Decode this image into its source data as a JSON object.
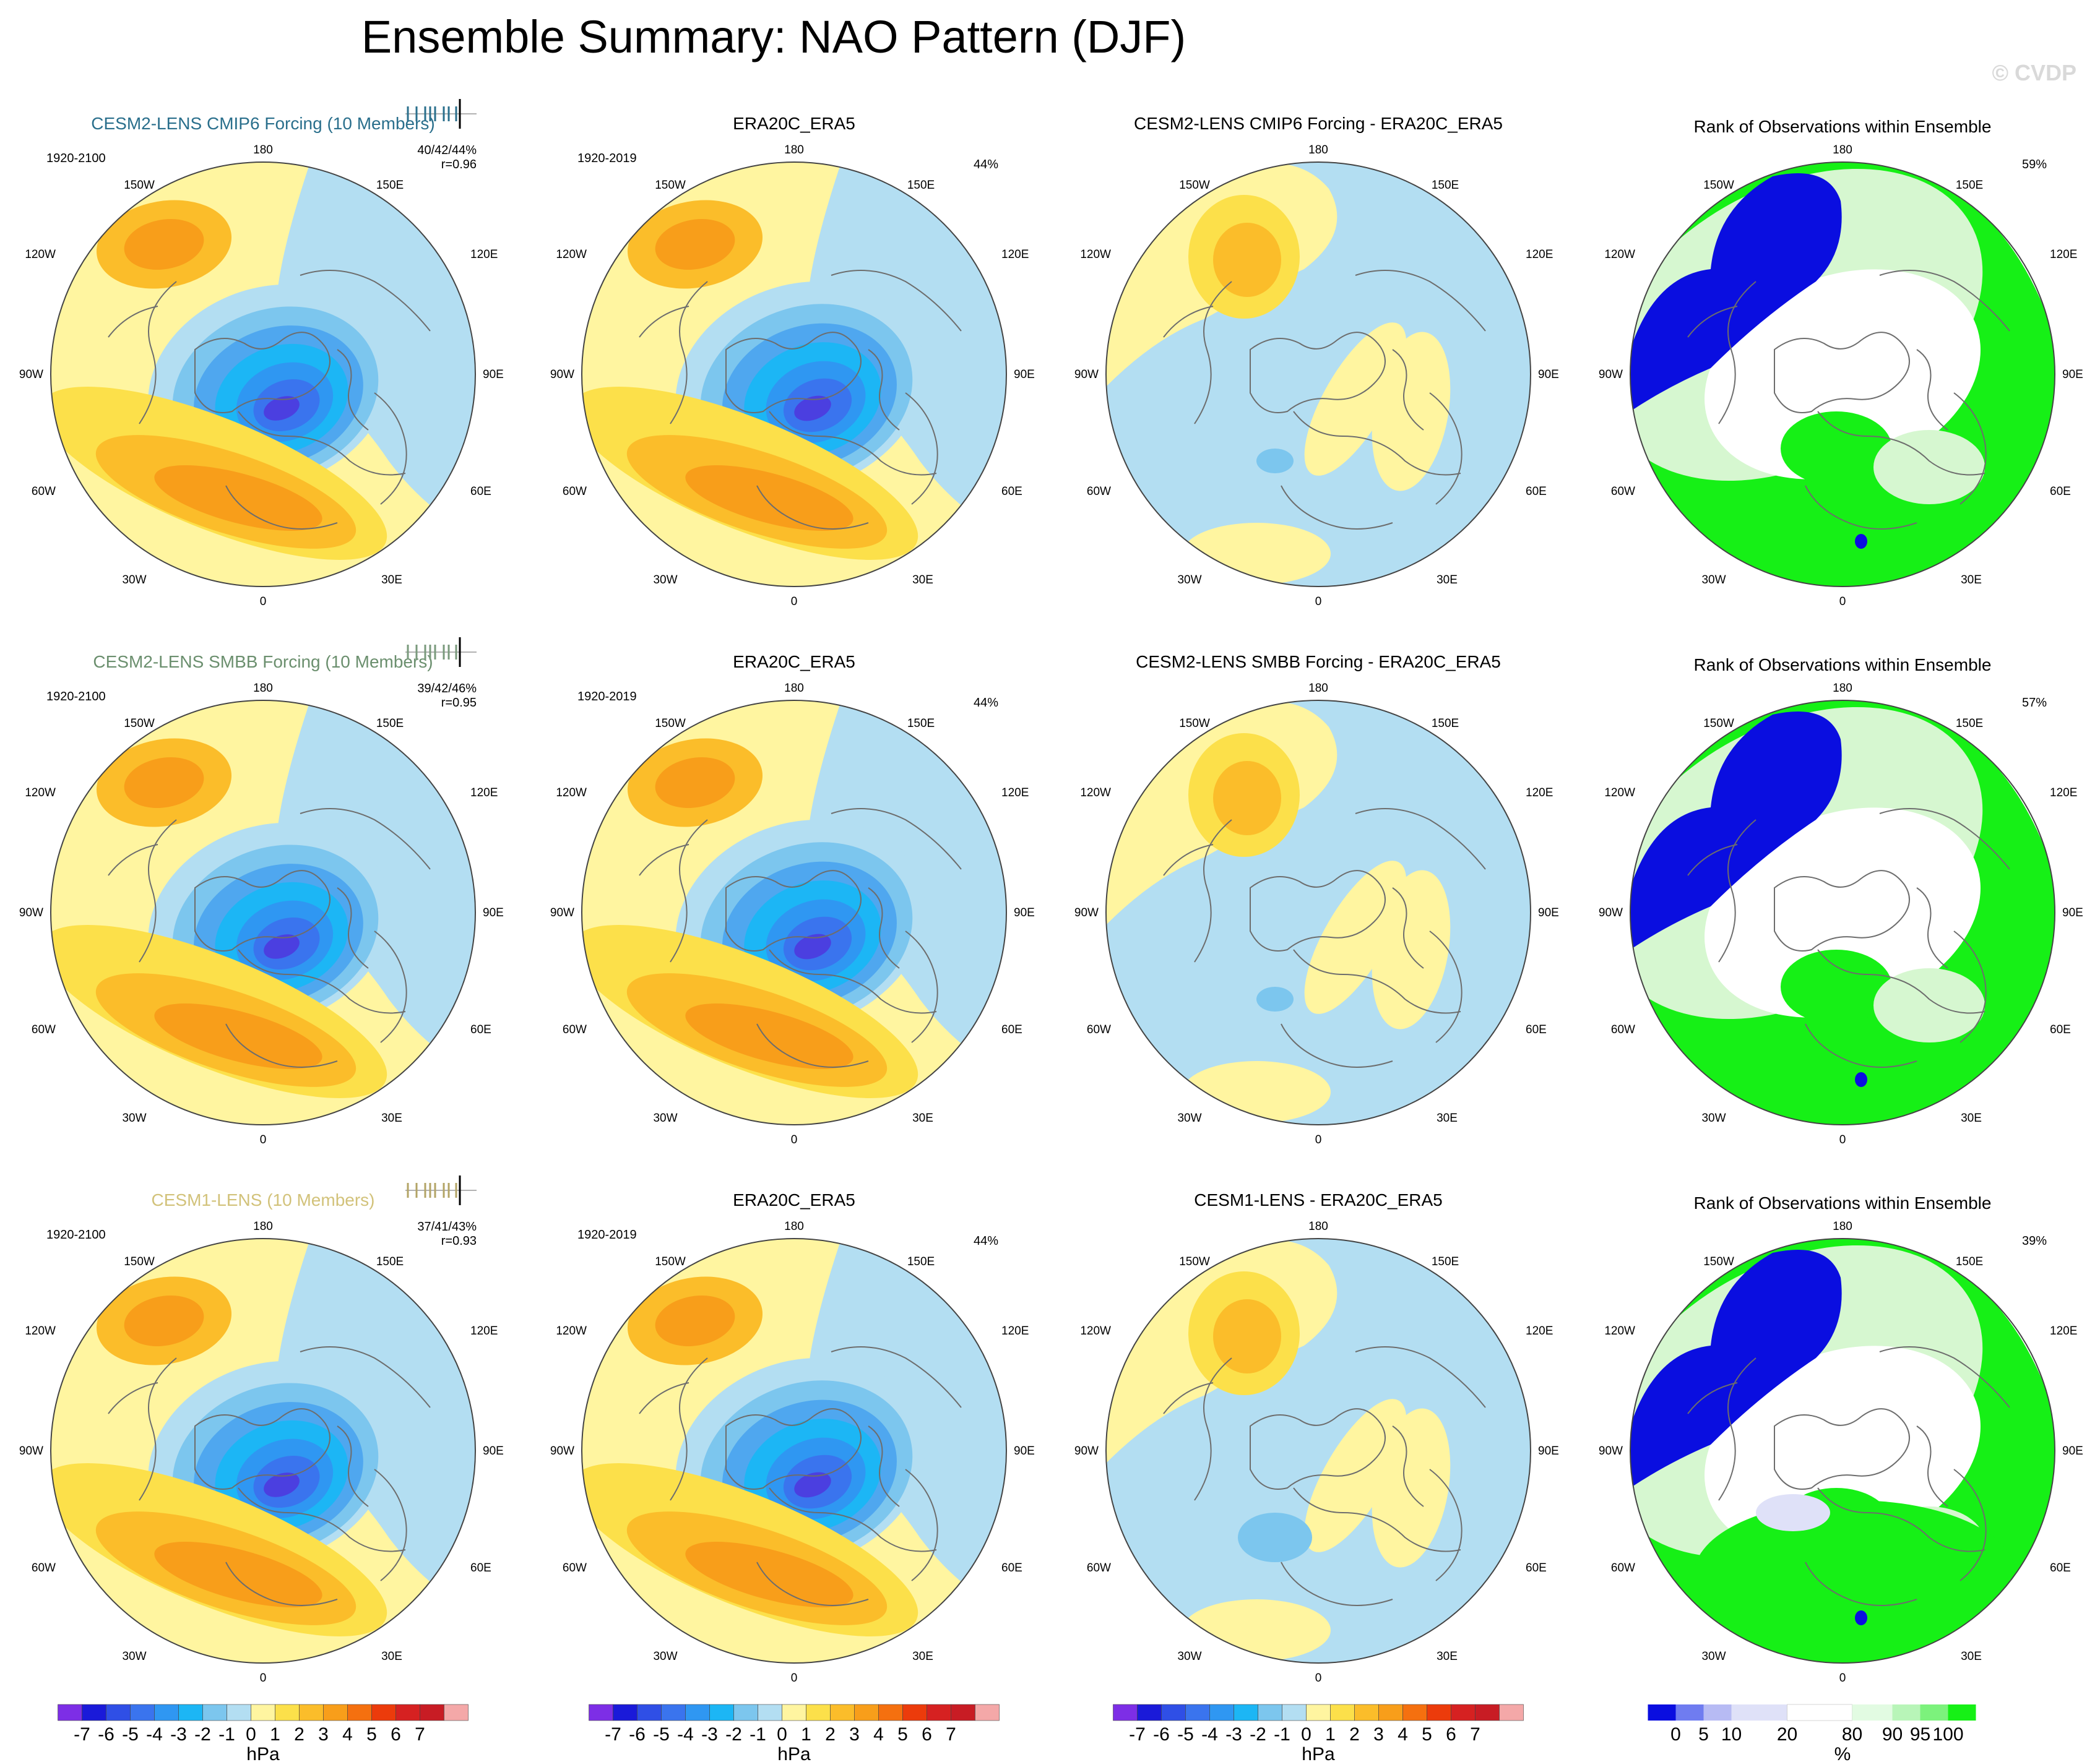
{
  "title": "Ensemble Summary: NAO Pattern (DJF)",
  "watermark": "© CVDP",
  "rows": [
    {
      "model_title": "CESM2-LENS CMIP6 Forcing (10 Members)",
      "model_title_color": "#2a6f8c",
      "model_period": "1920-2100",
      "model_stats": "40/42/44%",
      "model_r": "r=0.96",
      "strip_color": "#2a6f8c",
      "obs_title": "ERA20C_ERA5",
      "obs_period": "1920-2019",
      "obs_pct": "44%",
      "diff_title": "CESM2-LENS CMIP6 Forcing - ERA20C_ERA5",
      "rank_title": "Rank of Observations within Ensemble",
      "rank_pct": "59%"
    },
    {
      "model_title": "CESM2-LENS SMBB Forcing (10 Members)",
      "model_title_color": "#6b8f6e",
      "model_period": "1920-2100",
      "model_stats": "39/42/46%",
      "model_r": "r=0.95",
      "strip_color": "#7a9a7c",
      "obs_title": "ERA20C_ERA5",
      "obs_period": "1920-2019",
      "obs_pct": "44%",
      "diff_title": "CESM2-LENS SMBB Forcing - ERA20C_ERA5",
      "rank_title": "Rank of Observations within Ensemble",
      "rank_pct": "57%"
    },
    {
      "model_title": "CESM1-LENS (10 Members)",
      "model_title_color": "#d2c27a",
      "model_period": "1920-2100",
      "model_stats": "37/41/43%",
      "model_r": "r=0.93",
      "strip_color": "#b3a466",
      "obs_title": "ERA20C_ERA5",
      "obs_period": "1920-2019",
      "obs_pct": "44%",
      "diff_title": "CESM1-LENS - ERA20C_ERA5",
      "rank_title": "Rank of Observations within Ensemble",
      "rank_pct": "39%"
    }
  ],
  "map_labels": {
    "top": "180",
    "bottom": "0",
    "left": "90W",
    "right": "90E",
    "upper_left": "150W",
    "upper_right": "150E",
    "mid_upper_left": "120W",
    "mid_upper_right": "120E",
    "mid_lower_left": "60W",
    "mid_lower_right": "60E",
    "lower_left": "30W",
    "lower_right": "30E"
  },
  "colorbar": {
    "unit": "hPa",
    "labels": [
      "-7",
      "-6",
      "-5",
      "-4",
      "-3",
      "-2",
      "-1",
      "0",
      "1",
      "2",
      "3",
      "4",
      "5",
      "6",
      "7"
    ],
    "colors": [
      "#7d2ee6",
      "#1a1ad9",
      "#2f4fe6",
      "#3a74ee",
      "#2f97f2",
      "#1cb6f5",
      "#7cc6ee",
      "#b3def2",
      "#fff5a0",
      "#fce04a",
      "#fbbd2a",
      "#f89e1a",
      "#f5700f",
      "#ec3b0b",
      "#d62121",
      "#c81c24",
      "#f4a8a8"
    ]
  },
  "rank_colorbar": {
    "unit": "%",
    "labels": [
      "0",
      "5",
      "10",
      "20",
      "80",
      "90",
      "95",
      "100"
    ],
    "colors": [
      "#0a0ee0",
      "#6f7cf0",
      "#b7bbf4",
      "#dfe1f8",
      "#ffffff",
      "#e2fbe2",
      "#b8f5b8",
      "#7cf27c",
      "#16f016"
    ]
  },
  "palette": {
    "warm_light": "#fff5a0",
    "warm_1": "#fce04a",
    "warm_2": "#fbbd2a",
    "warm_3": "#f89e1a",
    "warm_4": "#f5700f",
    "cool_light": "#b3def2",
    "cool_1": "#7cc6ee",
    "cool_2": "#56b0f0",
    "cool_3": "#2f97f2",
    "cool_4": "#1cb6f5",
    "cool_5": "#3a74ee",
    "cool_6": "#2f4fe6",
    "cool_7": "#4b3fe0",
    "rank_low": "#0a0ee0",
    "rank_high": "#16f016",
    "rank_light_green": "#d6f7d0",
    "rank_light_blue": "#dfe1f8"
  }
}
